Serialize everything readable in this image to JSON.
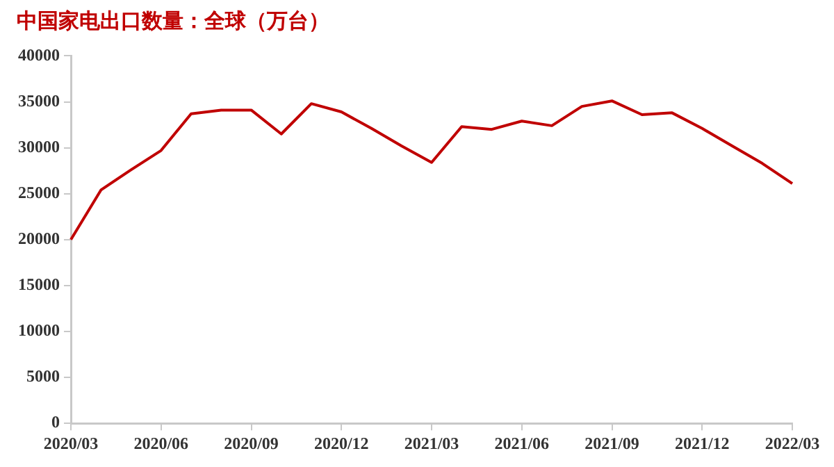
{
  "chart_data": {
    "type": "line",
    "title": "中国家电出口数量：全球（万台）",
    "categories": [
      "2020/03",
      null,
      null,
      "2020/06",
      null,
      null,
      "2020/09",
      null,
      null,
      "2020/12",
      null,
      null,
      "2021/03",
      null,
      null,
      "2021/06",
      null,
      null,
      "2021/09",
      null,
      null,
      "2021/12",
      null,
      null,
      "2022/03"
    ],
    "series": [
      {
        "color": "#c00000",
        "values": [
          20000,
          25400,
          27600,
          29700,
          33700,
          34100,
          34100,
          31500,
          34800,
          33900,
          32100,
          30200,
          28400,
          32300,
          32000,
          32900,
          32400,
          34500,
          35100,
          33600,
          33800,
          32100,
          30200,
          28300,
          26100
        ]
      }
    ],
    "ylim": [
      0,
      40000
    ],
    "yticks": [
      0,
      5000,
      10000,
      15000,
      20000,
      25000,
      30000,
      35000,
      40000
    ],
    "grid": false,
    "legend": false,
    "marker": "none",
    "line_style": "solid"
  }
}
